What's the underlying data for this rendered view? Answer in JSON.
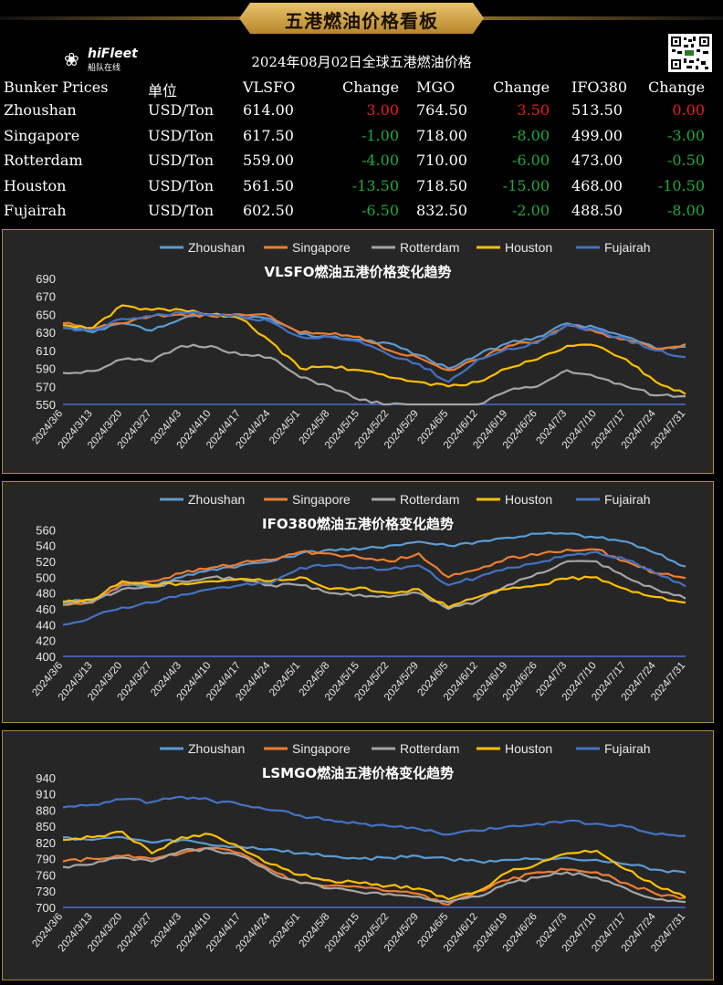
{
  "banner_title": "五港燃油价格看板",
  "logo": {
    "brand": "hiFleet",
    "sub": "船队在线",
    "icon": "ship-wheel-icon"
  },
  "qr_icon": "qr-code-icon",
  "subtitle": "2024年08月02日全球五港燃油价格",
  "table": {
    "headers": [
      "Bunker Prices",
      "单位",
      "VLSFO",
      "Change",
      "MGO",
      "Change",
      "IFO380",
      "Change"
    ],
    "rows": [
      {
        "port": "Zhoushan",
        "unit": "USD/Ton",
        "vlsfo": "614.00",
        "vlsfo_change": "3.00",
        "mgo": "764.50",
        "mgo_change": "3.50",
        "ifo380": "513.50",
        "ifo380_change": "0.00"
      },
      {
        "port": "Singapore",
        "unit": "USD/Ton",
        "vlsfo": "617.50",
        "vlsfo_change": "-1.00",
        "mgo": "718.00",
        "mgo_change": "-8.00",
        "ifo380": "499.00",
        "ifo380_change": "-3.00"
      },
      {
        "port": "Rotterdam",
        "unit": "USD/Ton",
        "vlsfo": "559.00",
        "vlsfo_change": "-4.00",
        "mgo": "710.00",
        "mgo_change": "-6.00",
        "ifo380": "473.00",
        "ifo380_change": "-0.50"
      },
      {
        "port": "Houston",
        "unit": "USD/Ton",
        "vlsfo": "561.50",
        "vlsfo_change": "-13.50",
        "mgo": "718.50",
        "mgo_change": "-15.00",
        "ifo380": "468.00",
        "ifo380_change": "-10.50"
      },
      {
        "port": "Fujairah",
        "unit": "USD/Ton",
        "vlsfo": "602.50",
        "vlsfo_change": "-6.50",
        "mgo": "832.50",
        "mgo_change": "-2.00",
        "ifo380": "488.50",
        "ifo380_change": "-8.00"
      }
    ]
  },
  "colors": {
    "up": "#e81d1d",
    "down": "#1faa3c",
    "gold": "#b08a3e",
    "grid": "#4a6fd6"
  },
  "series_colors": {
    "Zhoushan": "#5b9bd5",
    "Singapore": "#ed7d31",
    "Rotterdam": "#a5a5a5",
    "Houston": "#ffc000",
    "Fujairah": "#4472c4"
  },
  "chart_data": [
    {
      "type": "line",
      "title": "VLSFO燃油五港价格变化趋势",
      "x": [
        "2024/3/6",
        "2024/3/13",
        "2024/3/20",
        "2024/3/27",
        "2024/4/3",
        "2024/4/10",
        "2024/4/17",
        "2024/4/24",
        "2024/5/1",
        "2024/5/8",
        "2024/5/15",
        "2024/5/22",
        "2024/5/29",
        "2024/6/5",
        "2024/6/12",
        "2024/6/19",
        "2024/6/26",
        "2024/7/3",
        "2024/7/10",
        "2024/7/17",
        "2024/7/24",
        "2024/7/31"
      ],
      "yticks": [
        550,
        570,
        590,
        610,
        630,
        650,
        670,
        690
      ],
      "ylim": [
        550,
        695
      ],
      "legend": "top",
      "series": [
        {
          "name": "Zhoushan",
          "values": [
            635,
            630,
            640,
            632,
            645,
            650,
            648,
            645,
            628,
            625,
            622,
            618,
            605,
            590,
            605,
            618,
            625,
            640,
            635,
            625,
            612,
            614
          ]
        },
        {
          "name": "Singapore",
          "values": [
            640,
            635,
            640,
            648,
            650,
            648,
            650,
            648,
            630,
            628,
            625,
            610,
            602,
            588,
            600,
            615,
            620,
            638,
            630,
            622,
            612,
            617
          ]
        },
        {
          "name": "Rotterdam",
          "values": [
            585,
            587,
            600,
            598,
            615,
            615,
            605,
            602,
            580,
            570,
            555,
            550,
            548,
            545,
            550,
            565,
            570,
            588,
            580,
            570,
            560,
            559
          ]
        },
        {
          "name": "Houston",
          "values": [
            638,
            635,
            660,
            655,
            655,
            650,
            645,
            620,
            590,
            592,
            588,
            580,
            575,
            570,
            575,
            590,
            600,
            615,
            615,
            600,
            575,
            561.5
          ]
        },
        {
          "name": "Fujairah",
          "values": [
            635,
            632,
            645,
            648,
            652,
            650,
            647,
            642,
            625,
            625,
            620,
            605,
            595,
            575,
            600,
            612,
            618,
            638,
            632,
            622,
            610,
            602.5
          ]
        }
      ]
    },
    {
      "type": "line",
      "title": "IFO380燃油五港价格变化趋势",
      "x": [
        "2024/3/6",
        "2024/3/13",
        "2024/3/20",
        "2024/3/27",
        "2024/4/3",
        "2024/4/10",
        "2024/4/17",
        "2024/4/24",
        "2024/5/1",
        "2024/5/8",
        "2024/5/15",
        "2024/5/22",
        "2024/5/29",
        "2024/6/5",
        "2024/6/12",
        "2024/6/19",
        "2024/6/26",
        "2024/7/3",
        "2024/7/10",
        "2024/7/17",
        "2024/7/24",
        "2024/7/31"
      ],
      "yticks": [
        400,
        420,
        440,
        460,
        480,
        500,
        520,
        540,
        560
      ],
      "ylim": [
        400,
        565
      ],
      "legend": "top",
      "series": [
        {
          "name": "Zhoushan",
          "values": [
            470,
            470,
            490,
            490,
            500,
            510,
            515,
            520,
            530,
            535,
            535,
            540,
            545,
            540,
            545,
            550,
            555,
            555,
            550,
            545,
            530,
            513.5
          ]
        },
        {
          "name": "Singapore",
          "values": [
            465,
            468,
            492,
            495,
            505,
            512,
            518,
            522,
            532,
            530,
            525,
            520,
            530,
            500,
            510,
            525,
            528,
            535,
            535,
            520,
            505,
            499
          ]
        },
        {
          "name": "Rotterdam",
          "values": [
            465,
            470,
            485,
            488,
            495,
            500,
            498,
            490,
            490,
            480,
            478,
            475,
            480,
            460,
            470,
            490,
            505,
            520,
            520,
            500,
            485,
            473
          ]
        },
        {
          "name": "Houston",
          "values": [
            468,
            472,
            495,
            490,
            492,
            495,
            498,
            495,
            500,
            485,
            487,
            480,
            485,
            462,
            475,
            485,
            490,
            498,
            500,
            485,
            475,
            468
          ]
        },
        {
          "name": "Fujairah",
          "values": [
            440,
            450,
            462,
            468,
            478,
            485,
            490,
            492,
            512,
            515,
            512,
            510,
            515,
            490,
            500,
            512,
            518,
            528,
            532,
            522,
            505,
            488.5
          ]
        }
      ]
    },
    {
      "type": "line",
      "title": "LSMGO燃油五港价格变化趋势",
      "x": [
        "2024/3/6",
        "2024/3/13",
        "2024/3/20",
        "2024/3/27",
        "2024/4/3",
        "2024/4/10",
        "2024/4/17",
        "2024/4/24",
        "2024/5/1",
        "2024/5/8",
        "2024/5/15",
        "2024/5/22",
        "2024/5/29",
        "2024/6/5",
        "2024/6/12",
        "2024/6/19",
        "2024/6/26",
        "2024/7/3",
        "2024/7/10",
        "2024/7/17",
        "2024/7/24",
        "2024/7/31"
      ],
      "yticks": [
        700,
        730,
        760,
        790,
        820,
        850,
        880,
        910,
        940
      ],
      "ylim": [
        700,
        945
      ],
      "legend": "top",
      "series": [
        {
          "name": "Zhoushan",
          "values": [
            830,
            825,
            830,
            820,
            825,
            815,
            812,
            808,
            800,
            795,
            790,
            792,
            795,
            790,
            785,
            788,
            790,
            792,
            788,
            780,
            770,
            764.5
          ]
        },
        {
          "name": "Singapore",
          "values": [
            785,
            790,
            795,
            790,
            800,
            810,
            800,
            770,
            745,
            740,
            738,
            730,
            725,
            705,
            730,
            750,
            765,
            770,
            765,
            745,
            725,
            718
          ]
        },
        {
          "name": "Rotterdam",
          "values": [
            775,
            780,
            792,
            785,
            805,
            808,
            795,
            765,
            745,
            735,
            728,
            725,
            720,
            710,
            720,
            745,
            755,
            765,
            755,
            735,
            715,
            710
          ]
        },
        {
          "name": "Houston",
          "values": [
            825,
            830,
            840,
            800,
            830,
            835,
            810,
            780,
            760,
            750,
            745,
            740,
            735,
            715,
            730,
            765,
            780,
            800,
            805,
            770,
            740,
            718.5
          ]
        },
        {
          "name": "Fujairah",
          "values": [
            885,
            890,
            900,
            895,
            905,
            898,
            890,
            880,
            870,
            862,
            855,
            850,
            845,
            835,
            842,
            850,
            855,
            860,
            855,
            850,
            835,
            832.5
          ]
        }
      ]
    }
  ]
}
